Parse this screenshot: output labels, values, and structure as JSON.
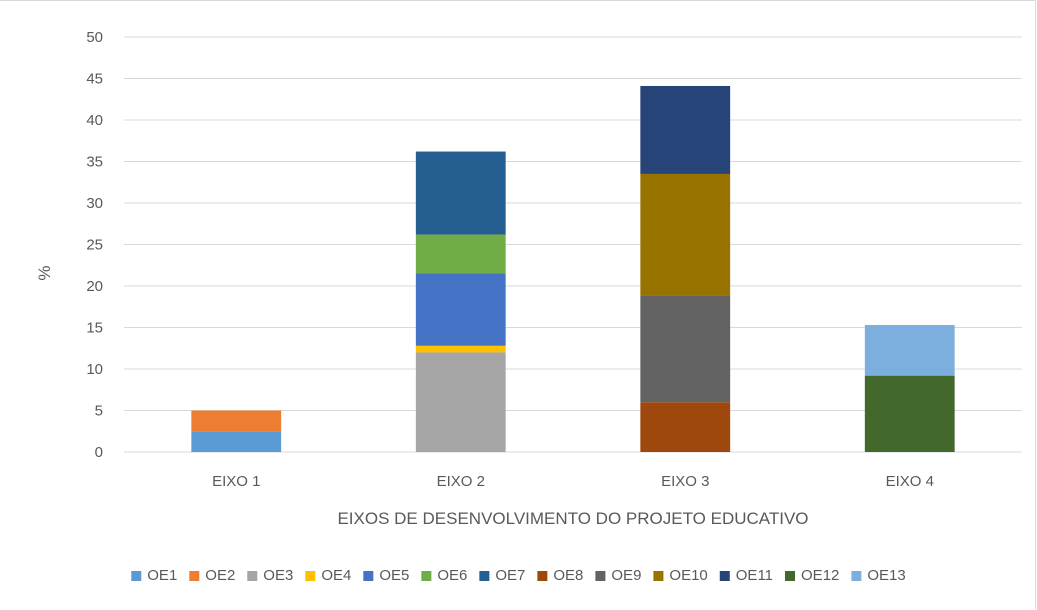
{
  "chart_data": {
    "type": "bar",
    "stacked": true,
    "title": "",
    "xlabel": "EIXOS DE DESENVOLVIMENTO DO PROJETO EDUCATIVO",
    "ylabel": "%",
    "ylim": [
      0,
      50
    ],
    "yticks": [
      0,
      5,
      10,
      15,
      20,
      25,
      30,
      35,
      40,
      45,
      50
    ],
    "grid": true,
    "legend": "bottom",
    "categories": [
      "EIXO 1",
      "EIXO 2",
      "EIXO 3",
      "EIXO 4"
    ],
    "series": [
      {
        "name": "OE1",
        "color": "#5b9bd5",
        "values": [
          2.5,
          0,
          0,
          0
        ]
      },
      {
        "name": "OE2",
        "color": "#ed7d31",
        "values": [
          2.5,
          0,
          0,
          0
        ]
      },
      {
        "name": "OE3",
        "color": "#a5a5a5",
        "values": [
          0,
          12.0,
          0,
          0
        ]
      },
      {
        "name": "OE4",
        "color": "#ffc000",
        "values": [
          0,
          0.8,
          0,
          0
        ]
      },
      {
        "name": "OE5",
        "color": "#4472c4",
        "values": [
          0,
          8.7,
          0,
          0
        ]
      },
      {
        "name": "OE6",
        "color": "#70ad47",
        "values": [
          0,
          4.7,
          0,
          0
        ]
      },
      {
        "name": "OE7",
        "color": "#255e91",
        "values": [
          0,
          10.0,
          0,
          0
        ]
      },
      {
        "name": "OE8",
        "color": "#9e480e",
        "values": [
          0,
          0,
          6.0,
          0
        ]
      },
      {
        "name": "OE9",
        "color": "#636363",
        "values": [
          0,
          0,
          12.8,
          0
        ]
      },
      {
        "name": "OE10",
        "color": "#997300",
        "values": [
          0,
          0,
          14.7,
          0
        ]
      },
      {
        "name": "OE11",
        "color": "#264478",
        "values": [
          0,
          0,
          10.6,
          0
        ]
      },
      {
        "name": "OE12",
        "color": "#43682b",
        "values": [
          0,
          0,
          0,
          9.2
        ]
      },
      {
        "name": "OE13",
        "color": "#7cafdd",
        "values": [
          0,
          0,
          0,
          6.1
        ]
      }
    ]
  }
}
